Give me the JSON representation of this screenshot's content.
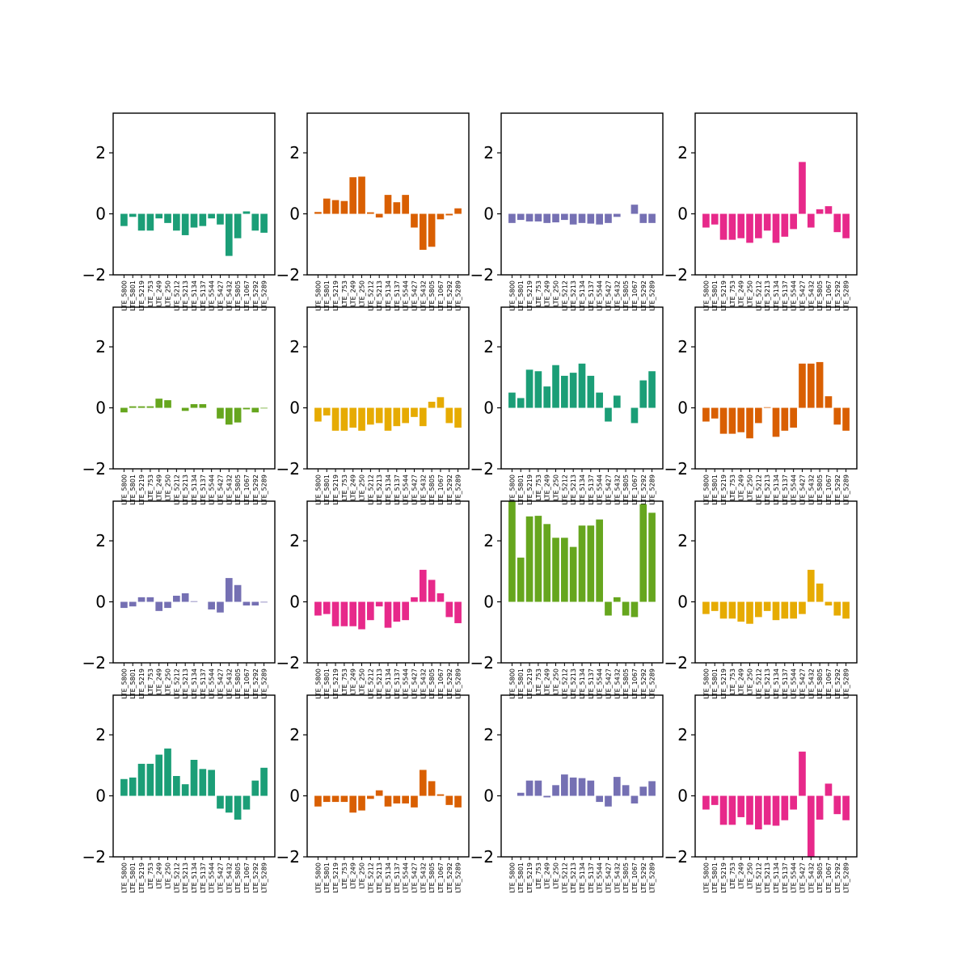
{
  "chart_data": {
    "type": "bar",
    "layout": "grid-4x4",
    "ylim": [
      -2,
      3.3
    ],
    "yticks": [
      -2,
      0,
      2
    ],
    "ytick_labels": [
      "−2",
      "0",
      "2"
    ],
    "categories": [
      "LTE_5800",
      "LTE_5801",
      "LTE_5219",
      "LTE_753",
      "LTE_249",
      "LTE_250",
      "LTE_5212",
      "LTE_5213",
      "LTE_5134",
      "LTE_5137",
      "LTE_5544",
      "LTE_5427",
      "LTE_5432",
      "LTE_5805",
      "LTE_1067",
      "LTE_5292",
      "LTE_5289"
    ],
    "panels": [
      {
        "color": "#1b9e77",
        "values": [
          -0.4,
          -0.1,
          -0.55,
          -0.55,
          -0.15,
          -0.3,
          -0.55,
          -0.7,
          -0.45,
          -0.4,
          -0.15,
          -0.35,
          -1.38,
          -0.8,
          0.08,
          -0.55,
          -0.62
        ]
      },
      {
        "color": "#d95f02",
        "values": [
          0.06,
          0.5,
          0.45,
          0.42,
          1.2,
          1.22,
          0.05,
          -0.12,
          0.62,
          0.38,
          0.62,
          -0.45,
          -1.18,
          -1.08,
          -0.18,
          -0.05,
          0.18
        ]
      },
      {
        "color": "#7570b3",
        "values": [
          -0.3,
          -0.2,
          -0.25,
          -0.25,
          -0.3,
          -0.28,
          -0.2,
          -0.35,
          -0.3,
          -0.32,
          -0.35,
          -0.3,
          -0.1,
          0.0,
          0.3,
          -0.3,
          -0.3
        ]
      },
      {
        "color": "#e7298a",
        "values": [
          -0.45,
          -0.35,
          -0.85,
          -0.85,
          -0.8,
          -0.95,
          -0.8,
          -0.55,
          -0.95,
          -0.75,
          -0.5,
          1.7,
          -0.45,
          0.15,
          0.25,
          -0.6,
          -0.8
        ]
      },
      {
        "color": "#66a61e",
        "values": [
          -0.15,
          0.05,
          0.05,
          0.05,
          0.3,
          0.25,
          0.0,
          -0.1,
          0.12,
          0.12,
          0.0,
          -0.35,
          -0.55,
          -0.48,
          -0.05,
          -0.15,
          -0.02
        ]
      },
      {
        "color": "#e6ab02",
        "values": [
          -0.45,
          -0.25,
          -0.75,
          -0.75,
          -0.65,
          -0.75,
          -0.55,
          -0.5,
          -0.75,
          -0.6,
          -0.5,
          -0.3,
          -0.6,
          0.2,
          0.35,
          -0.5,
          -0.65
        ]
      },
      {
        "color": "#1b9e77",
        "values": [
          0.5,
          0.32,
          1.25,
          1.2,
          0.7,
          1.4,
          1.05,
          1.15,
          1.45,
          1.05,
          0.5,
          -0.45,
          0.4,
          0.0,
          -0.5,
          0.9,
          1.2
        ]
      },
      {
        "color": "#d95f02",
        "values": [
          -0.45,
          -0.35,
          -0.85,
          -0.85,
          -0.8,
          -1.0,
          -0.5,
          0.02,
          -0.95,
          -0.75,
          -0.65,
          1.45,
          1.45,
          1.5,
          0.38,
          -0.55,
          -0.75
        ]
      },
      {
        "color": "#7570b3",
        "values": [
          -0.2,
          -0.15,
          0.15,
          0.15,
          -0.3,
          -0.2,
          0.2,
          0.28,
          0.02,
          0.0,
          -0.25,
          -0.35,
          0.78,
          0.55,
          -0.12,
          -0.12,
          -0.02
        ]
      },
      {
        "color": "#e7298a",
        "values": [
          -0.45,
          -0.4,
          -0.8,
          -0.8,
          -0.8,
          -0.9,
          -0.6,
          -0.15,
          -0.85,
          -0.65,
          -0.6,
          0.15,
          1.05,
          0.72,
          0.28,
          -0.5,
          -0.7
        ]
      },
      {
        "color": "#66a61e",
        "values": [
          3.3,
          1.45,
          2.8,
          2.82,
          2.55,
          2.1,
          2.1,
          1.8,
          2.5,
          2.5,
          2.7,
          -0.45,
          0.15,
          -0.45,
          -0.5,
          3.2,
          2.92
        ]
      },
      {
        "color": "#e6ab02",
        "values": [
          -0.4,
          -0.3,
          -0.55,
          -0.55,
          -0.65,
          -0.72,
          -0.5,
          -0.3,
          -0.6,
          -0.55,
          -0.55,
          -0.4,
          1.05,
          0.6,
          -0.12,
          -0.45,
          -0.55
        ]
      },
      {
        "color": "#1b9e77",
        "values": [
          0.55,
          0.6,
          1.05,
          1.05,
          1.35,
          1.55,
          0.65,
          0.38,
          1.18,
          0.88,
          0.85,
          -0.42,
          -0.55,
          -0.78,
          -0.45,
          0.5,
          0.92
        ]
      },
      {
        "color": "#d95f02",
        "values": [
          -0.35,
          -0.2,
          -0.2,
          -0.2,
          -0.55,
          -0.48,
          -0.1,
          0.18,
          -0.35,
          -0.25,
          -0.25,
          -0.38,
          0.85,
          0.48,
          0.05,
          -0.3,
          -0.38
        ]
      },
      {
        "color": "#7570b3",
        "values": [
          0.0,
          0.1,
          0.5,
          0.5,
          -0.05,
          0.35,
          0.7,
          0.6,
          0.58,
          0.5,
          -0.2,
          -0.35,
          0.62,
          0.35,
          -0.25,
          0.3,
          0.48
        ]
      },
      {
        "color": "#e7298a",
        "values": [
          -0.45,
          -0.3,
          -0.95,
          -0.95,
          -0.7,
          -0.95,
          -1.1,
          -0.95,
          -0.98,
          -0.8,
          -0.45,
          1.45,
          -2.05,
          -0.78,
          0.4,
          -0.6,
          -0.8
        ]
      }
    ]
  }
}
